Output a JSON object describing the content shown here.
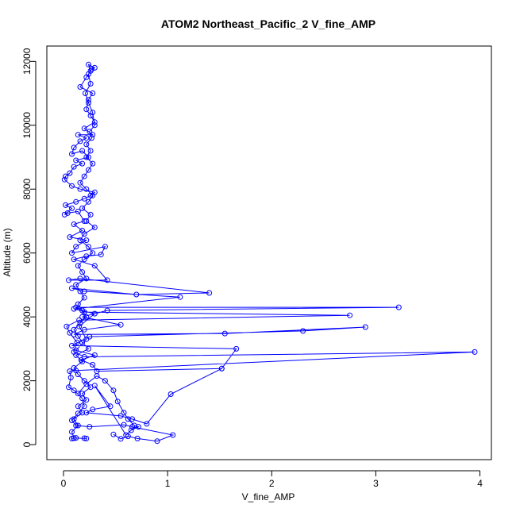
{
  "chart_data": {
    "type": "line",
    "title": "ATOM2 Northeast_Pacific_2 V_fine_AMP",
    "xlabel": "V_fine_AMP",
    "ylabel": "Altitude (m)",
    "xlim": [
      -0.16,
      4.11
    ],
    "ylim": [
      -470,
      12480
    ],
    "xticks": [
      0,
      1,
      2,
      3,
      4
    ],
    "yticks": [
      0,
      2000,
      4000,
      6000,
      8000,
      10000,
      12000
    ],
    "grid": false,
    "legend": "none",
    "color": "#0000ff",
    "marker": "open-circle",
    "series": [
      {
        "points": [
          [
            0.48,
            320
          ],
          [
            0.55,
            180
          ],
          [
            0.62,
            260
          ],
          [
            0.71,
            190
          ],
          [
            0.9,
            110
          ],
          [
            1.05,
            300
          ],
          [
            0.66,
            560
          ],
          [
            0.58,
            620
          ],
          [
            0.25,
            560
          ],
          [
            0.12,
            600
          ],
          [
            0.08,
            760
          ],
          [
            0.14,
            980
          ],
          [
            0.2,
            1200
          ],
          [
            0.18,
            1450
          ],
          [
            0.1,
            1700
          ],
          [
            0.05,
            1800
          ],
          [
            0.07,
            2100
          ],
          [
            0.06,
            2300
          ],
          [
            0.12,
            2320
          ],
          [
            3.95,
            2900
          ],
          [
            0.2,
            2750
          ],
          [
            0.1,
            2900
          ],
          [
            0.13,
            3200
          ],
          [
            0.06,
            3500
          ],
          [
            0.03,
            3700
          ],
          [
            0.15,
            3900
          ],
          [
            2.75,
            4050
          ],
          [
            0.2,
            4150
          ],
          [
            0.12,
            4300
          ],
          [
            3.22,
            4300
          ],
          [
            0.42,
            4200
          ],
          [
            0.18,
            4000
          ],
          [
            0.55,
            3750
          ],
          [
            0.2,
            3600
          ],
          [
            0.1,
            3450
          ],
          [
            1.55,
            3480
          ],
          [
            2.9,
            3680
          ],
          [
            2.3,
            3560
          ],
          [
            0.25,
            3380
          ],
          [
            0.08,
            3100
          ],
          [
            1.66,
            3000
          ],
          [
            1.52,
            2380
          ],
          [
            0.32,
            2300
          ],
          [
            0.28,
            2500
          ],
          [
            0.17,
            2650
          ],
          [
            0.3,
            2800
          ],
          [
            0.12,
            2950
          ],
          [
            0.22,
            3300
          ],
          [
            0.15,
            3700
          ],
          [
            0.3,
            4100
          ],
          [
            0.1,
            4250
          ],
          [
            1.12,
            4620
          ],
          [
            0.2,
            4800
          ],
          [
            0.08,
            4900
          ],
          [
            0.7,
            4700
          ],
          [
            1.4,
            4750
          ],
          [
            0.16,
            5200
          ],
          [
            0.05,
            5150
          ],
          [
            0.42,
            5150
          ],
          [
            0.3,
            5600
          ],
          [
            0.1,
            5800
          ],
          [
            0.22,
            5900
          ],
          [
            0.36,
            5950
          ],
          [
            0.4,
            6200
          ],
          [
            0.08,
            6000
          ],
          [
            0.12,
            6200
          ],
          [
            0.22,
            6400
          ],
          [
            0.06,
            6500
          ],
          [
            0.18,
            6700
          ],
          [
            0.1,
            6900
          ],
          [
            0.2,
            7000
          ],
          [
            0.14,
            7300
          ],
          [
            0.04,
            7250
          ],
          [
            0.01,
            7200
          ],
          [
            0.08,
            7400
          ],
          [
            0.02,
            7500
          ],
          [
            0.12,
            7600
          ],
          [
            0.2,
            7700
          ],
          [
            0.26,
            7800
          ],
          [
            0.3,
            7900
          ],
          [
            0.16,
            8000
          ],
          [
            0.08,
            8100
          ],
          [
            0.01,
            8300
          ],
          [
            0.02,
            8400
          ],
          [
            0.06,
            8500
          ],
          [
            0.1,
            8700
          ],
          [
            0.18,
            8800
          ],
          [
            0.12,
            8900
          ],
          [
            0.24,
            9000
          ],
          [
            0.18,
            9200
          ],
          [
            0.08,
            9100
          ],
          [
            0.1,
            9300
          ],
          [
            0.16,
            9500
          ],
          [
            0.22,
            9600
          ],
          [
            0.14,
            9700
          ],
          [
            0.28,
            9700
          ],
          [
            0.2,
            9900
          ],
          [
            0.3,
            10100
          ],
          [
            0.26,
            10300
          ],
          [
            0.22,
            10500
          ],
          [
            0.24,
            10800
          ],
          [
            0.28,
            11000
          ],
          [
            0.16,
            11200
          ],
          [
            0.22,
            11500
          ],
          [
            0.26,
            11700
          ],
          [
            0.24,
            11900
          ],
          [
            0.3,
            11800
          ],
          [
            0.27,
            11750
          ],
          [
            0.24,
            11600
          ],
          [
            0.26,
            11300
          ],
          [
            0.21,
            11000
          ],
          [
            0.24,
            10700
          ],
          [
            0.28,
            10400
          ],
          [
            0.3,
            10000
          ],
          [
            0.25,
            9800
          ],
          [
            0.27,
            9600
          ],
          [
            0.22,
            9400
          ],
          [
            0.26,
            9200
          ],
          [
            0.22,
            9000
          ],
          [
            0.28,
            8800
          ],
          [
            0.24,
            8600
          ],
          [
            0.2,
            8400
          ],
          [
            0.16,
            8200
          ],
          [
            0.22,
            8000
          ],
          [
            0.28,
            7800
          ],
          [
            0.24,
            7600
          ],
          [
            0.18,
            7400
          ],
          [
            0.26,
            7200
          ],
          [
            0.22,
            7000
          ],
          [
            0.3,
            6800
          ],
          [
            0.2,
            6600
          ],
          [
            0.16,
            6400
          ],
          [
            0.24,
            6200
          ],
          [
            0.28,
            6000
          ],
          [
            0.2,
            5800
          ],
          [
            0.14,
            5600
          ],
          [
            0.18,
            5400
          ],
          [
            0.22,
            5200
          ],
          [
            0.12,
            5000
          ],
          [
            0.16,
            4800
          ],
          [
            0.2,
            4600
          ],
          [
            0.14,
            4400
          ],
          [
            0.18,
            4200
          ],
          [
            0.22,
            4000
          ],
          [
            0.16,
            3800
          ],
          [
            0.1,
            3600
          ],
          [
            0.14,
            3400
          ],
          [
            0.18,
            3200
          ],
          [
            0.24,
            3000
          ],
          [
            0.12,
            2800
          ],
          [
            0.18,
            2600
          ],
          [
            0.1,
            2400
          ],
          [
            0.14,
            2200
          ],
          [
            0.2,
            2000
          ],
          [
            0.26,
            1800
          ],
          [
            0.18,
            1600
          ],
          [
            0.22,
            1400
          ],
          [
            0.14,
            1200
          ],
          [
            0.18,
            1000
          ],
          [
            0.1,
            800
          ],
          [
            0.14,
            600
          ],
          [
            0.08,
            400
          ],
          [
            0.1,
            200
          ],
          [
            0.12,
            210
          ],
          [
            0.08,
            190
          ],
          [
            0.1,
            205
          ],
          [
            0.22,
            190
          ],
          [
            0.2,
            200
          ]
        ]
      },
      {
        "points": [
          [
            0.14,
            1600
          ],
          [
            0.22,
            1900
          ],
          [
            0.32,
            2150
          ],
          [
            0.4,
            2000
          ],
          [
            0.48,
            1700
          ],
          [
            0.52,
            1350
          ],
          [
            0.58,
            1000
          ],
          [
            0.62,
            800
          ],
          [
            0.68,
            600
          ],
          [
            0.72,
            560
          ],
          [
            0.65,
            450
          ],
          [
            0.6,
            300
          ],
          [
            0.3,
            1850
          ],
          [
            0.45,
            1200
          ],
          [
            0.28,
            1100
          ],
          [
            0.22,
            1000
          ],
          [
            0.55,
            900
          ],
          [
            0.66,
            800
          ],
          [
            0.8,
            650
          ],
          [
            1.03,
            1580
          ],
          [
            1.52,
            2380
          ]
        ]
      }
    ]
  }
}
